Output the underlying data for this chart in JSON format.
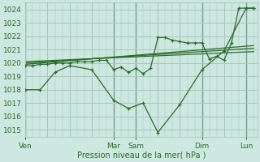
{
  "background_color": "#cce8e0",
  "grid_color": "#a8c8be",
  "line_color": "#2d6b2d",
  "title": "Pression niveau de la mer( hPa )",
  "ylim": [
    1014.5,
    1024.5
  ],
  "yticks": [
    1015,
    1016,
    1017,
    1018,
    1019,
    1020,
    1021,
    1022,
    1023,
    1024
  ],
  "day_labels": [
    "Ven",
    "Mar",
    "Sam",
    "Dim",
    "Lun"
  ],
  "day_positions": [
    0,
    48,
    60,
    96,
    120
  ],
  "xlim": [
    0,
    126
  ],
  "series1_x": [
    0,
    4,
    8,
    12,
    16,
    20,
    24,
    28,
    32,
    36,
    40,
    44,
    48,
    52,
    56,
    60,
    64,
    68,
    72,
    76,
    80,
    84,
    88,
    92,
    96,
    100,
    104,
    108,
    112,
    116,
    120,
    124
  ],
  "series1_y": [
    1019.8,
    1019.8,
    1019.9,
    1019.9,
    1020.0,
    1020.0,
    1020.0,
    1020.1,
    1020.1,
    1020.1,
    1020.2,
    1020.2,
    1019.5,
    1019.7,
    1019.3,
    1019.6,
    1019.2,
    1019.6,
    1021.9,
    1021.9,
    1021.7,
    1021.6,
    1021.5,
    1021.5,
    1021.5,
    1020.3,
    1020.5,
    1020.2,
    1021.5,
    1024.1,
    1024.1,
    1024.1
  ],
  "series2_x": [
    0,
    8,
    16,
    24,
    36,
    48,
    56,
    64,
    72,
    84,
    96,
    108,
    120,
    124
  ],
  "series2_y": [
    1018.0,
    1018.0,
    1019.3,
    1019.8,
    1019.5,
    1017.2,
    1016.6,
    1017.0,
    1014.8,
    1016.9,
    1019.5,
    1020.9,
    1024.1,
    1024.1
  ],
  "trend1_x": [
    0,
    124
  ],
  "trend1_y": [
    1019.9,
    1021.3
  ],
  "trend2_x": [
    0,
    124
  ],
  "trend2_y": [
    1020.0,
    1021.1
  ],
  "trend3_x": [
    0,
    124
  ],
  "trend3_y": [
    1020.1,
    1020.85
  ]
}
